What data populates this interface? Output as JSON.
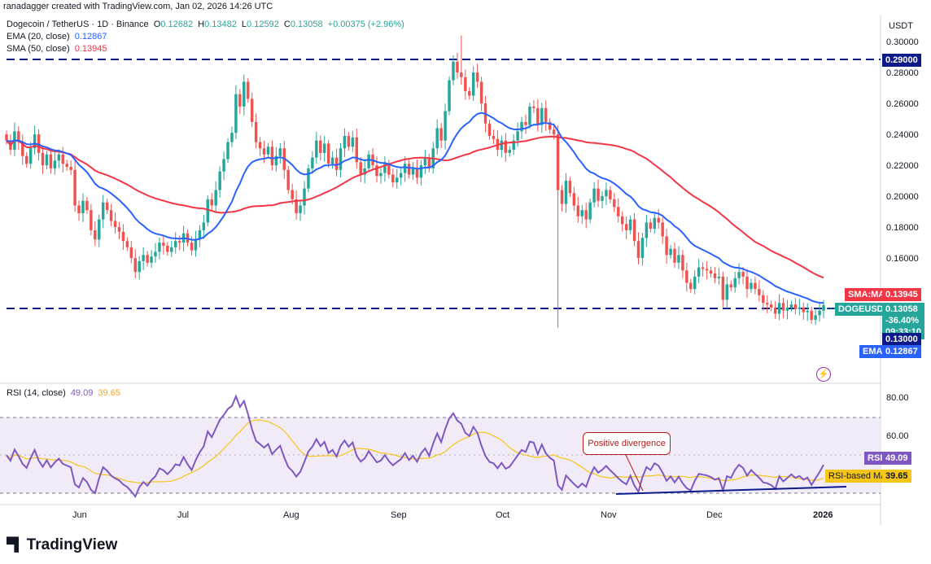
{
  "credit": "ranadagger created with TradingView.com, Jan 02, 2026 14:26 UTC",
  "header": {
    "symbol": "Dogecoin / TetherUS · 1D · Binance",
    "o_label": "O",
    "o": "0.12682",
    "h_label": "H",
    "h": "0.13482",
    "l_label": "L",
    "l": "0.12592",
    "c_label": "C",
    "c": "0.13058",
    "change": "+0.00375 (+2.96%)",
    "ema_label": "EMA (20, close)",
    "ema_value": "0.12867",
    "sma_label": "SMA (50, close)",
    "sma_value": "0.13945"
  },
  "rsi_header": {
    "label": "RSI (14, close)",
    "rsi": "49.09",
    "rsi_ma": "39.65"
  },
  "axis": {
    "currency": "USDT",
    "price_ticks": [
      "0.30000",
      "0.28000",
      "0.26000",
      "0.24000",
      "0.22000",
      "0.20000",
      "0.18000",
      "0.16000"
    ],
    "rsi_ticks": [
      "80.00",
      "60.00"
    ],
    "months": [
      "Jun",
      "Jul",
      "Aug",
      "Sep",
      "Oct",
      "Nov",
      "Dec",
      "2026"
    ]
  },
  "tags": {
    "level_top": "0.29000",
    "sma_name": "SMA:MA",
    "sma_val": "0.13945",
    "symbol": "DOGEUSDT",
    "price": "0.13058",
    "pct": "-36.40%",
    "countdown": "09:33:10",
    "level_low": "0.13000",
    "ema_name": "EMA",
    "ema_val": "0.12867",
    "rsi_name": "RSI",
    "rsi_val": "49.09",
    "rsi_ma_name": "RSI-based MA",
    "rsi_ma_val": "39.65"
  },
  "annotation": "Positive divergence",
  "logo": "TradingView",
  "colors": {
    "up": "#26a69a",
    "down": "#ef5350",
    "ema": "#2962ff",
    "sma": "#f23645",
    "rsi": "#7e57c2",
    "rsi_ma": "#f5c518",
    "level": "#0d1a8a"
  },
  "chart_data": [
    {
      "type": "candlestick",
      "title": "Dogecoin / TetherUS · 1D · Binance",
      "ylim": [
        0.105,
        0.31
      ],
      "horizontal_levels": [
        0.29,
        0.13
      ],
      "ohlc_close": [
        0.237,
        0.231,
        0.243,
        0.236,
        0.227,
        0.222,
        0.232,
        0.241,
        0.229,
        0.221,
        0.228,
        0.219,
        0.224,
        0.228,
        0.222,
        0.22,
        0.218,
        0.195,
        0.19,
        0.198,
        0.192,
        0.179,
        0.173,
        0.186,
        0.197,
        0.192,
        0.185,
        0.181,
        0.178,
        0.172,
        0.168,
        0.161,
        0.152,
        0.159,
        0.163,
        0.158,
        0.162,
        0.165,
        0.171,
        0.169,
        0.165,
        0.168,
        0.172,
        0.171,
        0.177,
        0.171,
        0.166,
        0.173,
        0.179,
        0.184,
        0.199,
        0.195,
        0.205,
        0.217,
        0.225,
        0.236,
        0.242,
        0.267,
        0.259,
        0.275,
        0.264,
        0.249,
        0.236,
        0.232,
        0.228,
        0.233,
        0.221,
        0.227,
        0.232,
        0.218,
        0.205,
        0.199,
        0.19,
        0.195,
        0.206,
        0.219,
        0.226,
        0.237,
        0.229,
        0.235,
        0.222,
        0.226,
        0.218,
        0.232,
        0.24,
        0.233,
        0.239,
        0.223,
        0.215,
        0.219,
        0.228,
        0.221,
        0.214,
        0.216,
        0.222,
        0.215,
        0.21,
        0.213,
        0.216,
        0.222,
        0.215,
        0.219,
        0.213,
        0.221,
        0.226,
        0.219,
        0.232,
        0.245,
        0.237,
        0.256,
        0.276,
        0.288,
        0.281,
        0.278,
        0.269,
        0.266,
        0.281,
        0.275,
        0.261,
        0.248,
        0.24,
        0.238,
        0.231,
        0.237,
        0.229,
        0.231,
        0.237,
        0.243,
        0.249,
        0.247,
        0.259,
        0.258,
        0.247,
        0.258,
        0.249,
        0.244,
        0.241,
        0.205,
        0.196,
        0.211,
        0.203,
        0.195,
        0.188,
        0.192,
        0.186,
        0.197,
        0.206,
        0.198,
        0.201,
        0.205,
        0.199,
        0.194,
        0.188,
        0.183,
        0.179,
        0.186,
        0.172,
        0.161,
        0.174,
        0.184,
        0.18,
        0.187,
        0.184,
        0.175,
        0.163,
        0.167,
        0.158,
        0.163,
        0.153,
        0.145,
        0.141,
        0.149,
        0.155,
        0.154,
        0.153,
        0.151,
        0.148,
        0.149,
        0.134,
        0.144,
        0.142,
        0.148,
        0.152,
        0.149,
        0.141,
        0.145,
        0.141,
        0.137,
        0.132,
        0.131,
        0.129,
        0.125,
        0.132,
        0.127,
        0.129,
        0.131,
        0.128,
        0.129,
        0.126,
        0.127,
        0.121,
        0.124,
        0.127,
        0.1306
      ],
      "series": [
        {
          "name": "EMA (20, close)",
          "last": 0.12867
        },
        {
          "name": "SMA (50, close)",
          "last": 0.13945
        }
      ],
      "annotations": [
        "0.29000",
        "0.13000"
      ]
    },
    {
      "type": "line",
      "title": "RSI (14, close)",
      "ylim": [
        20,
        90
      ],
      "band": [
        30,
        70
      ],
      "series": [
        {
          "name": "RSI",
          "last": 49.09
        },
        {
          "name": "RSI-based MA",
          "last": 39.65
        }
      ],
      "annotation": "Positive divergence"
    }
  ]
}
